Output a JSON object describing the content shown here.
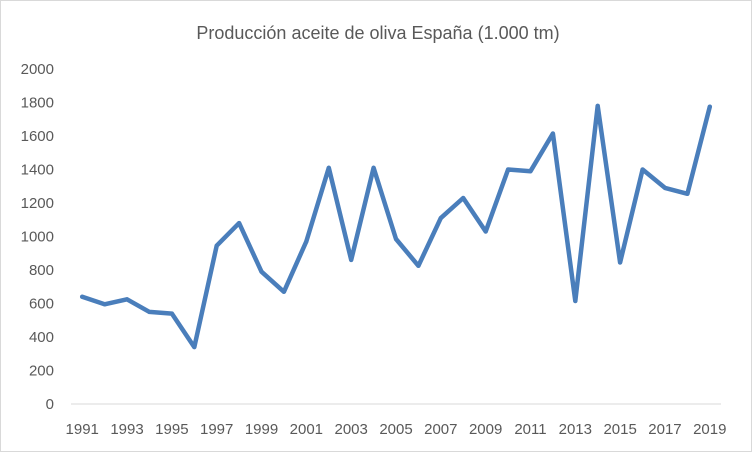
{
  "chart_data": {
    "type": "line",
    "title": "Producción aceite de oliva España (1.000 tm)",
    "xlabel": "",
    "ylabel": "",
    "ylim": [
      0,
      2000
    ],
    "yticks": [
      "0",
      "200",
      "400",
      "600",
      "800",
      "1000",
      "1200",
      "1400",
      "1600",
      "1800",
      "2000"
    ],
    "xtick_labels": [
      "1991",
      "1993",
      "1995",
      "1997",
      "1999",
      "2001",
      "2003",
      "2005",
      "2007",
      "2009",
      "2011",
      "2013",
      "2015",
      "2017",
      "2019"
    ],
    "grid": false,
    "legend": "none",
    "color": "#4a7ebb",
    "x": [
      1991,
      1992,
      1993,
      1994,
      1995,
      1996,
      1997,
      1998,
      1999,
      2000,
      2001,
      2002,
      2003,
      2004,
      2005,
      2006,
      2007,
      2008,
      2009,
      2010,
      2011,
      2012,
      2013,
      2014,
      2015,
      2016,
      2017,
      2018,
      2019
    ],
    "series": [
      {
        "values": [
          640,
          595,
          625,
          550,
          540,
          340,
          945,
          1080,
          790,
          670,
          970,
          1410,
          860,
          1410,
          985,
          825,
          1110,
          1230,
          1030,
          1400,
          1390,
          1615,
          615,
          1780,
          845,
          1400,
          1290,
          1255,
          1775
        ]
      }
    ]
  }
}
